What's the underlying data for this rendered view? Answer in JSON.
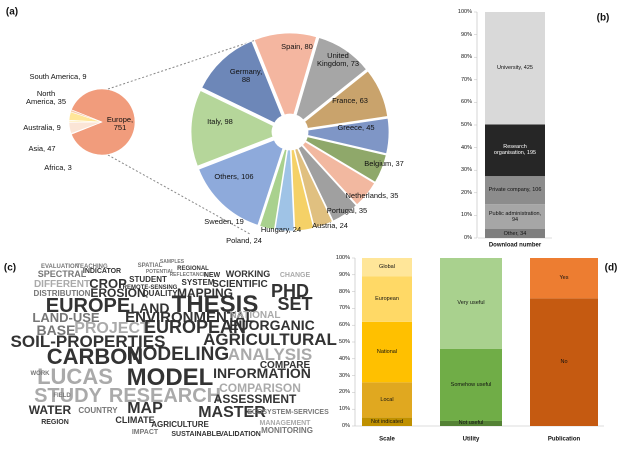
{
  "chart_data": [
    {
      "type": "pie-of-pie",
      "panel_label": "(a)",
      "values": [
        751,
        3,
        47,
        9,
        35,
        9
      ],
      "value_labels": [
        "Europe, 751",
        "Africa, 3",
        "Asia, 47",
        "Australia, 9",
        "North America, 35",
        "South America, 9"
      ],
      "colors": [
        "#f19c7c",
        "#f4b183",
        "#fbe5d6",
        "#fff2cc",
        "#ffe699",
        "#f8cbad"
      ],
      "detail": {
        "values": [
          80,
          73,
          63,
          45,
          37,
          35,
          35,
          24,
          24,
          24,
          19,
          106,
          98,
          88
        ],
        "value_labels": [
          "Spain, 80",
          "United Kingdom, 73",
          "France, 63",
          "Greece, 45",
          "Belgium, 37",
          "Netherlands, 35",
          "Portugal, 35",
          "Austria, 24",
          "Hungary, 24",
          "Poland, 24",
          "Sweden, 19",
          "Others, 106",
          "Italy, 98",
          "Germany, 88"
        ],
        "colors": [
          "#f4b6a0",
          "#a6a6a6",
          "#c9a36c",
          "#7f96c6",
          "#8fa86a",
          "#f2b8a0",
          "#a0a0a0",
          "#e0c080",
          "#f5d167",
          "#9fc3e6",
          "#a9d18e",
          "#8eaadb",
          "#b5d69a",
          "#6d87b8"
        ]
      }
    },
    {
      "type": "stacked-bar",
      "panel_label": "(b)",
      "categories": [
        "Download number"
      ],
      "ylim": [
        0,
        100
      ],
      "yticks": [
        {
          "value": 0,
          "label": "0%"
        },
        {
          "value": 10,
          "label": "10%"
        },
        {
          "value": 20,
          "label": "20%"
        },
        {
          "value": 30,
          "label": "30%"
        },
        {
          "value": 40,
          "label": "40%"
        },
        {
          "value": 50,
          "label": "50%"
        },
        {
          "value": 60,
          "label": "60%"
        },
        {
          "value": 70,
          "label": "70%"
        },
        {
          "value": 80,
          "label": "80%"
        },
        {
          "value": 90,
          "label": "90%"
        },
        {
          "value": 100,
          "label": "100%"
        }
      ],
      "stacks": [
        {
          "values": [
            34,
            94,
            106,
            195,
            425
          ],
          "value_labels": [
            "Other, 34",
            "Public administration, 94",
            "Private company, 106",
            "Research organisation, 195",
            "University, 425"
          ],
          "colors": [
            "#7f7f7f",
            "#a6a6a6",
            "#8c8c8c",
            "#262626",
            "#d9d9d9"
          ]
        }
      ]
    },
    {
      "type": "stacked-bar",
      "panel_label": "(d)",
      "categories": [
        "Scale",
        "Utility",
        "Publication"
      ],
      "ylim": [
        0,
        100
      ],
      "yticks": [
        {
          "value": 0,
          "label": "0%"
        },
        {
          "value": 10,
          "label": "10%"
        },
        {
          "value": 20,
          "label": "20%"
        },
        {
          "value": 30,
          "label": "30%"
        },
        {
          "value": 40,
          "label": "40%"
        },
        {
          "value": 50,
          "label": "50%"
        },
        {
          "value": 60,
          "label": "60%"
        },
        {
          "value": 70,
          "label": "70%"
        },
        {
          "value": 80,
          "label": "80%"
        },
        {
          "value": 90,
          "label": "90%"
        },
        {
          "value": 100,
          "label": "100%"
        }
      ],
      "stacks": [
        {
          "values": [
            5,
            21,
            36,
            27,
            11
          ],
          "value_labels": [
            "Not indicated",
            "Local",
            "National",
            "European",
            "Global"
          ],
          "colors": [
            "#bf9000",
            "#e0a820",
            "#ffc000",
            "#ffd966",
            "#ffe699"
          ]
        },
        {
          "values": [
            3,
            43,
            54
          ],
          "value_labels": [
            "Not useful",
            "Somehow useful",
            "Very useful"
          ],
          "colors": [
            "#548235",
            "#70ad47",
            "#a9d18e"
          ]
        },
        {
          "values": [
            76,
            24
          ],
          "value_labels": [
            "No",
            "Yes"
          ],
          "colors": [
            "#c55a11",
            "#ed7d31"
          ]
        }
      ]
    }
  ],
  "word_cloud": {
    "panel_label": "(c)",
    "words": [
      "EVALUATION",
      "TEACHING",
      "SPATIAL",
      "SAMPLES",
      "REGIONAL",
      "WORKING",
      "CHANGE",
      "SPECTRAL",
      "INDICATOR",
      "POTENTIAL",
      "REFLECTANCE",
      "NEW",
      "DIFFERENT",
      "CROP",
      "STUDENT",
      "REMOTE-SENSING",
      "SYSTEM",
      "SCIENTIFIC",
      "DISTRIBUTION",
      "EROSION",
      "QUALITY",
      "MAPPING",
      "PHD",
      "EUROPE",
      "LAND",
      "THESIS",
      "SET",
      "LAND-USE",
      "ENVIRONMENTAL",
      "NATIONAL",
      "BASE",
      "PROJECT",
      "EUROPEAN",
      "EUORGANIC",
      "SOIL-PROPERTIES",
      "AGRICULTURAL",
      "CARBON",
      "MODELING",
      "ANALYSIS",
      "LUCAS",
      "MODEL",
      "INFORMATION",
      "COMPARE",
      "STUDY",
      "RESEARCH",
      "COMPARISON",
      "ASSESSMENT",
      "WATER",
      "COUNTRY",
      "MAP",
      "MASTER",
      "REGION",
      "CLIMATE",
      "AGRICULTURE",
      "ECOSYSTEM-SERVICES",
      "MANAGEMENT",
      "IMPACT",
      "SUSTAINABLE",
      "VALIDATION",
      "MONITORING",
      "FIELD",
      "WORK"
    ]
  }
}
